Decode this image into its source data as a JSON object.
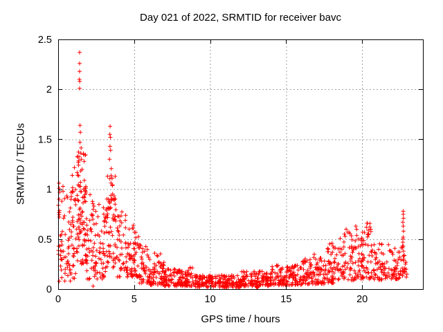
{
  "window": {
    "background": "#ffffff",
    "text_color": "#000000"
  },
  "chart_data": {
    "type": "scatter",
    "title": "Day 021 of 2022, SRMTID for receiver bavc",
    "xlabel": "GPS time / hours",
    "ylabel": "SRMTID / TECUs",
    "xlim": [
      0,
      24
    ],
    "ylim": [
      0,
      2.5
    ],
    "xticks": [
      0,
      5,
      10,
      15,
      20
    ],
    "yticks": [
      0,
      0.5,
      1,
      1.5,
      2,
      2.5
    ],
    "grid": {
      "show": true,
      "style": "dashed",
      "color": "#a0a0a0",
      "x_at": [
        5,
        10,
        15,
        20
      ],
      "y_at": [
        0.5,
        1,
        1.5,
        2
      ]
    },
    "border_color": "#000000",
    "legend": "none",
    "marker": {
      "shape": "plus",
      "color": "#ff0000",
      "size": 7
    },
    "series": [
      {
        "name": "SRMTID",
        "render": "binned-scatter",
        "seed": 20220121,
        "bands_format": [
          "hour_start",
          "hour_end",
          "count",
          "y_min",
          "y_max",
          "low_skew"
        ],
        "bands": [
          [
            0.0,
            0.35,
            28,
            0.05,
            1.1,
            1.2
          ],
          [
            0.35,
            0.85,
            34,
            0.08,
            0.95,
            1.3
          ],
          [
            0.85,
            1.25,
            36,
            0.1,
            1.22,
            1.2
          ],
          [
            1.25,
            1.85,
            90,
            0.25,
            1.45,
            1.1
          ],
          [
            1.85,
            2.55,
            55,
            0.08,
            0.95,
            1.2
          ],
          [
            2.55,
            3.15,
            40,
            0.1,
            0.85,
            1.3
          ],
          [
            3.15,
            3.8,
            70,
            0.2,
            1.32,
            1.1
          ],
          [
            3.8,
            4.5,
            45,
            0.12,
            0.78,
            1.4
          ],
          [
            4.5,
            5.3,
            60,
            0.12,
            0.62,
            1.6
          ],
          [
            5.3,
            6.0,
            45,
            0.06,
            0.45,
            1.7
          ],
          [
            6.0,
            7.0,
            70,
            0.04,
            0.36,
            1.8
          ],
          [
            7.0,
            9.0,
            130,
            0.03,
            0.22,
            1.6
          ],
          [
            9.0,
            12.0,
            190,
            0.02,
            0.14,
            1.4
          ],
          [
            12.0,
            14.0,
            130,
            0.03,
            0.18,
            1.5
          ],
          [
            14.0,
            16.0,
            130,
            0.04,
            0.24,
            1.6
          ],
          [
            16.0,
            17.5,
            95,
            0.05,
            0.32,
            1.7
          ],
          [
            17.5,
            18.3,
            55,
            0.06,
            0.46,
            1.5
          ],
          [
            18.3,
            19.5,
            65,
            0.09,
            0.58,
            1.5
          ],
          [
            19.5,
            20.6,
            75,
            0.1,
            0.66,
            1.6
          ],
          [
            20.6,
            21.6,
            55,
            0.09,
            0.46,
            1.5
          ],
          [
            21.6,
            22.5,
            45,
            0.1,
            0.45,
            1.5
          ],
          [
            22.5,
            22.95,
            25,
            0.1,
            0.55,
            1.2
          ]
        ],
        "points_format": [
          "hour",
          "tecu"
        ],
        "points": [
          [
            0.05,
            1.06
          ],
          [
            0.07,
            1.01
          ],
          [
            0.1,
            0.97
          ],
          [
            0.06,
            0.9
          ],
          [
            1.41,
            2.37
          ],
          [
            1.41,
            2.26
          ],
          [
            1.41,
            2.18
          ],
          [
            1.4,
            2.1
          ],
          [
            1.42,
            2.08
          ],
          [
            1.41,
            2.01
          ],
          [
            1.44,
            1.64
          ],
          [
            1.46,
            1.57
          ],
          [
            1.44,
            1.47
          ],
          [
            1.5,
            1.36
          ],
          [
            1.52,
            1.3
          ],
          [
            3.42,
            1.63
          ],
          [
            3.4,
            1.55
          ],
          [
            3.44,
            1.52
          ],
          [
            3.41,
            1.43
          ],
          [
            3.45,
            1.39
          ],
          [
            3.38,
            1.3
          ],
          [
            2.3,
            0.03
          ],
          [
            4.95,
            0.64
          ],
          [
            4.88,
            0.61
          ],
          [
            5.02,
            0.57
          ],
          [
            6.35,
            0.36
          ],
          [
            6.55,
            0.33
          ],
          [
            13.06,
            0.02
          ],
          [
            13.1,
            0.015
          ],
          [
            13.14,
            0.02
          ],
          [
            13.1,
            0.03
          ],
          [
            13.08,
            0.025
          ],
          [
            13.12,
            0.025
          ],
          [
            16.85,
            0.35
          ],
          [
            18.02,
            0.46
          ],
          [
            18.08,
            0.43
          ],
          [
            18.95,
            0.6
          ],
          [
            19.05,
            0.57
          ],
          [
            18.88,
            0.53
          ],
          [
            20.32,
            0.66
          ],
          [
            20.28,
            0.62
          ],
          [
            20.4,
            0.59
          ],
          [
            20.36,
            0.55
          ],
          [
            21.3,
            0.45
          ],
          [
            22.7,
            0.78
          ],
          [
            22.7,
            0.75
          ],
          [
            22.72,
            0.71
          ],
          [
            22.68,
            0.67
          ],
          [
            22.7,
            0.63
          ],
          [
            22.72,
            0.58
          ],
          [
            22.7,
            0.52
          ],
          [
            22.68,
            0.47
          ],
          [
            22.7,
            0.43
          ],
          [
            22.72,
            0.38
          ],
          [
            22.7,
            0.33
          ],
          [
            22.74,
            0.3
          ],
          [
            22.85,
            0.25
          ],
          [
            22.9,
            0.2
          ]
        ]
      }
    ]
  }
}
